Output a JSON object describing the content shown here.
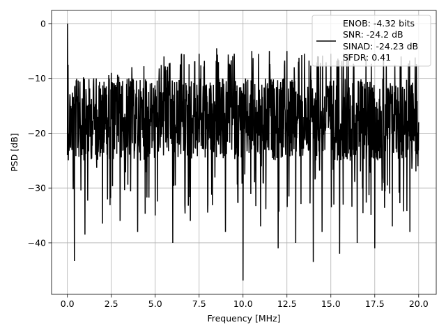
{
  "chart_data": {
    "type": "line",
    "title": "",
    "xlabel": "Frequency [MHz]",
    "ylabel": "PSD [dB]",
    "xlim": [
      -0.9,
      21.0
    ],
    "ylim": [
      -49.4,
      2.4
    ],
    "xticks": [
      0.0,
      2.5,
      5.0,
      7.5,
      10.0,
      12.5,
      15.0,
      17.5,
      20.0
    ],
    "xtick_labels": [
      "0.0",
      "2.5",
      "5.0",
      "7.5",
      "10.0",
      "12.5",
      "15.0",
      "17.5",
      "20.0"
    ],
    "yticks": [
      0,
      -10,
      -20,
      -30,
      -40
    ],
    "ytick_labels": [
      "0",
      "−10",
      "−20",
      "−30",
      "−40"
    ],
    "grid": true,
    "legend_position": "top-right",
    "legend_lines": [
      "ENOB: -4.32 bits",
      "SNR: -24.2 dB",
      "SINAD: -24.23 dB",
      "SFDR: 0.41"
    ],
    "series": [
      {
        "color": "#000000",
        "description": "Noise-like power spectral density: 0 dB peak at DC, envelope tops rising from about -9 dB near 0-3 MHz to about -5 dB between 7 and 20 MHz, values dense between -10 and -25 dB, downward spikes reaching about -47 dB",
        "x": [
          0.0,
          0.01,
          0.04,
          0.1,
          0.2,
          0.4,
          0.7,
          1.0,
          1.5,
          2.0,
          2.5,
          3.0,
          3.5,
          4.0,
          4.5,
          5.0,
          5.5,
          6.0,
          6.5,
          7.0,
          7.5,
          8.0,
          8.5,
          9.0,
          9.5,
          10.0,
          10.5,
          11.0,
          11.5,
          12.0,
          12.5,
          13.0,
          13.5,
          14.0,
          14.3,
          14.5,
          15.0,
          15.5,
          16.0,
          16.5,
          17.0,
          17.5,
          18.0,
          18.5,
          19.0,
          19.5,
          20.0
        ],
        "y": [
          -24.0,
          0.0,
          -7.5,
          -23.0,
          -15.0,
          -43.3,
          -12.0,
          -38.5,
          -10.0,
          -36.5,
          -9.0,
          -36.0,
          -10.0,
          -38.0,
          -10.5,
          -35.0,
          -6.0,
          -40.0,
          -5.5,
          -36.0,
          -5.5,
          -33.0,
          -4.5,
          -38.0,
          -5.5,
          -46.9,
          -5.0,
          -37.0,
          -5.0,
          -41.0,
          -5.0,
          -40.0,
          -5.5,
          -43.5,
          -6.0,
          -38.0,
          -5.5,
          -42.0,
          -5.5,
          -40.0,
          -6.0,
          -41.0,
          -5.5,
          -37.0,
          -6.0,
          -38.0,
          -18.0
        ]
      }
    ]
  }
}
